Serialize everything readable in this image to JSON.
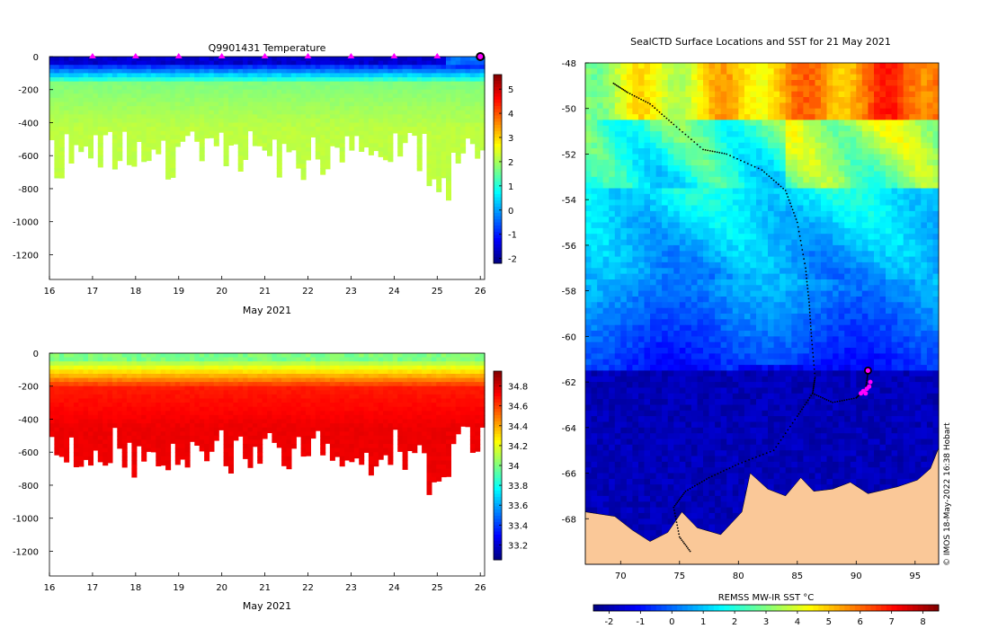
{
  "watermark": "© IMOS 18-May-2022 16:38 Hobart",
  "chart_data": [
    {
      "id": "temp",
      "type": "heatmap",
      "title": "Q9901431  Temperature",
      "xlabel": "May 2021",
      "ylabel": "",
      "xlim": [
        16,
        26.1
      ],
      "ylim": [
        -1350,
        0
      ],
      "xticks": [
        16,
        17,
        18,
        19,
        20,
        21,
        22,
        23,
        24,
        25,
        26
      ],
      "yticks": [
        0,
        -200,
        -400,
        -600,
        -800,
        -1000,
        -1200
      ],
      "colorbar": {
        "range": [
          -2.2,
          5.6
        ],
        "ticks": [
          5,
          4,
          3,
          2,
          1,
          0,
          -1,
          -2
        ],
        "colormap": "jet"
      },
      "profile_markers_x": [
        17.0,
        18.0,
        19.0,
        20.0,
        21.0,
        22.0,
        23.0,
        24.0,
        25.0
      ],
      "current_marker_x": 26.0,
      "marker_color": "#ff00ff"
    },
    {
      "id": "sal",
      "type": "heatmap",
      "title": "",
      "xlabel": "May 2021",
      "ylabel": "",
      "xlim": [
        16,
        26.1
      ],
      "ylim": [
        -1350,
        0
      ],
      "xticks": [
        16,
        17,
        18,
        19,
        20,
        21,
        22,
        23,
        24,
        25,
        26
      ],
      "yticks": [
        0,
        -200,
        -400,
        -600,
        -800,
        -1000,
        -1200
      ],
      "colorbar": {
        "range": [
          33.05,
          34.95
        ],
        "ticks": [
          34.8,
          34.6,
          34.4,
          34.2,
          34,
          33.8,
          33.6,
          33.4,
          33.2
        ],
        "colormap": "jet"
      }
    },
    {
      "id": "map",
      "type": "heatmap",
      "title": "SealCTD Surface Locations and SST for 21 May 2021",
      "xlabel": "",
      "ylabel": "",
      "xlim": [
        67,
        97
      ],
      "ylim": [
        -70,
        -48
      ],
      "xticks": [
        70,
        75,
        80,
        85,
        90,
        95
      ],
      "yticks": [
        -48,
        -50,
        -52,
        -54,
        -56,
        -58,
        -60,
        -62,
        -64,
        -66,
        -68
      ],
      "colorbar": {
        "label": "REMSS MW-IR SST °C",
        "range": [
          -2.5,
          8.5
        ],
        "ticks": [
          -2,
          -1,
          0,
          1,
          2,
          3,
          4,
          5,
          6,
          7,
          8
        ],
        "colormap": "jet",
        "orientation": "horizontal"
      },
      "track_color": "#000000",
      "land_color": "#fac898",
      "current_position": [
        91.0,
        -61.5
      ],
      "recent_positions": [
        [
          91.2,
          -62.0
        ],
        [
          90.9,
          -62.3
        ],
        [
          90.6,
          -62.4
        ],
        [
          90.4,
          -62.5
        ],
        [
          90.8,
          -62.5
        ],
        [
          91.1,
          -62.2
        ]
      ]
    }
  ]
}
